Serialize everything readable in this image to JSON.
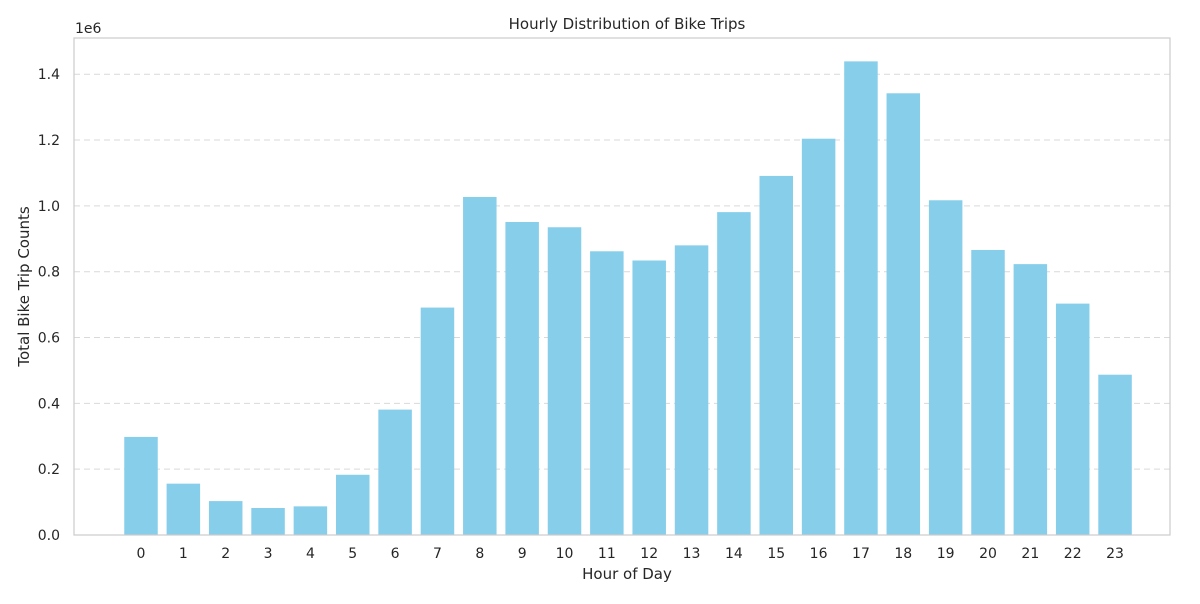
{
  "chart_data": {
    "type": "bar",
    "title": "Hourly Distribution of Bike Trips",
    "xlabel": "Hour of Day",
    "ylabel": "Total Bike Trip Counts",
    "y_offset_label": "1e6",
    "categories": [
      "0",
      "1",
      "2",
      "3",
      "4",
      "5",
      "6",
      "7",
      "8",
      "9",
      "10",
      "11",
      "12",
      "13",
      "14",
      "15",
      "16",
      "17",
      "18",
      "19",
      "20",
      "21",
      "22",
      "23"
    ],
    "values": [
      298000,
      156000,
      103000,
      82000,
      87000,
      183000,
      381000,
      691000,
      1027000,
      951000,
      935000,
      862000,
      834000,
      880000,
      981000,
      1091000,
      1204000,
      1439000,
      1342000,
      1017000,
      866000,
      823000,
      703000,
      487000
    ],
    "yticks": [
      0,
      0.2,
      0.4,
      0.6,
      0.8,
      1.0,
      1.2,
      1.4
    ],
    "ytick_labels": [
      "0.0",
      "0.2",
      "0.4",
      "0.6",
      "0.8",
      "1.0",
      "1.2",
      "1.4"
    ],
    "ylim": [
      0,
      1510000
    ],
    "grid": "horizontal dashed",
    "colors": {
      "bar": "#87ceeb",
      "grid": "#d9d9d9",
      "frame": "#cccccc",
      "text": "#262626"
    }
  }
}
